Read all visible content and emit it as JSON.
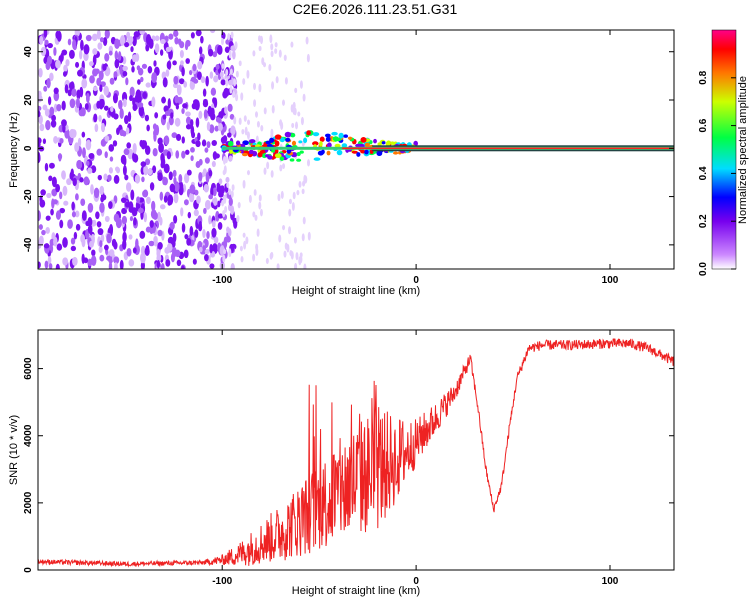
{
  "title": "C2E6.2026.111.23.51.G31",
  "colors": {
    "trace": "#ee2222",
    "axis": "#000000",
    "colormap": [
      "#ffffff",
      "#cc88ff",
      "#7700ee",
      "#0000ff",
      "#00ddff",
      "#00ff44",
      "#ccff00",
      "#ff7700",
      "#ff0000",
      "#ff0088"
    ]
  },
  "chart_data": [
    {
      "type": "heatmap",
      "name": "spectrogram",
      "xlabel": "Height of straight line (km)",
      "ylabel": "Frequency (Hz)",
      "xlim": [
        -195,
        133
      ],
      "ylim": [
        -50,
        49
      ],
      "xticks": [
        {
          "v": -100,
          "label": "-100"
        },
        {
          "v": 0,
          "label": "0"
        },
        {
          "v": 100,
          "label": "100"
        }
      ],
      "yticks": [
        {
          "v": -40,
          "label": "-40"
        },
        {
          "v": -20,
          "label": "-20"
        },
        {
          "v": 0,
          "label": "0"
        },
        {
          "v": 20,
          "label": "20"
        },
        {
          "v": 40,
          "label": "40"
        }
      ],
      "carrier": {
        "start_km": -100,
        "freq_hz": 0
      },
      "noise_region_km": [
        -195,
        -95
      ],
      "colorbar": {
        "label": "Normalized spectral amplitude",
        "range": [
          0,
          1
        ],
        "ticks": [
          {
            "v": 0.0,
            "label": "0.0"
          },
          {
            "v": 0.2,
            "label": "0.2"
          },
          {
            "v": 0.4,
            "label": "0.4"
          },
          {
            "v": 0.6,
            "label": "0.6"
          },
          {
            "v": 0.8,
            "label": "0.8"
          }
        ]
      }
    },
    {
      "type": "line",
      "name": "snr",
      "xlabel": "Height of straight line (km)",
      "ylabel": "SNR (10 * v/v)",
      "xlim": [
        -195,
        133
      ],
      "ylim": [
        0,
        7150
      ],
      "xticks": [
        {
          "v": -100,
          "label": "-100"
        },
        {
          "v": 0,
          "label": "0"
        },
        {
          "v": 100,
          "label": "100"
        }
      ],
      "yticks": [
        {
          "v": 0,
          "label": "0"
        },
        {
          "v": 2000,
          "label": "2000"
        },
        {
          "v": 4000,
          "label": "4000"
        },
        {
          "v": 6000,
          "label": "6000"
        }
      ],
      "envelope": {
        "x": [
          -195,
          -150,
          -110,
          -100,
          -90,
          -80,
          -70,
          -60,
          -50,
          -40,
          -30,
          -20,
          -10,
          0,
          10,
          20,
          28,
          32,
          36,
          40,
          44,
          48,
          52,
          58,
          65,
          80,
          100,
          110,
          120,
          133
        ],
        "y": [
          250,
          180,
          220,
          300,
          500,
          800,
          1100,
          1500,
          1900,
          2300,
          2700,
          3000,
          3300,
          3800,
          4500,
          5300,
          6300,
          4800,
          3000,
          1800,
          2500,
          4200,
          5700,
          6600,
          6700,
          6700,
          6750,
          6750,
          6600,
          6200
        ]
      },
      "noise_amplitude": {
        "x": [
          -195,
          -110,
          -100,
          -90,
          -60,
          -40,
          -20,
          -10,
          0,
          20,
          30,
          40,
          55,
          133
        ],
        "y": [
          70,
          70,
          150,
          400,
          1100,
          1600,
          1900,
          1300,
          700,
          300,
          150,
          120,
          150,
          150
        ]
      },
      "spike_max": 6300
    }
  ]
}
